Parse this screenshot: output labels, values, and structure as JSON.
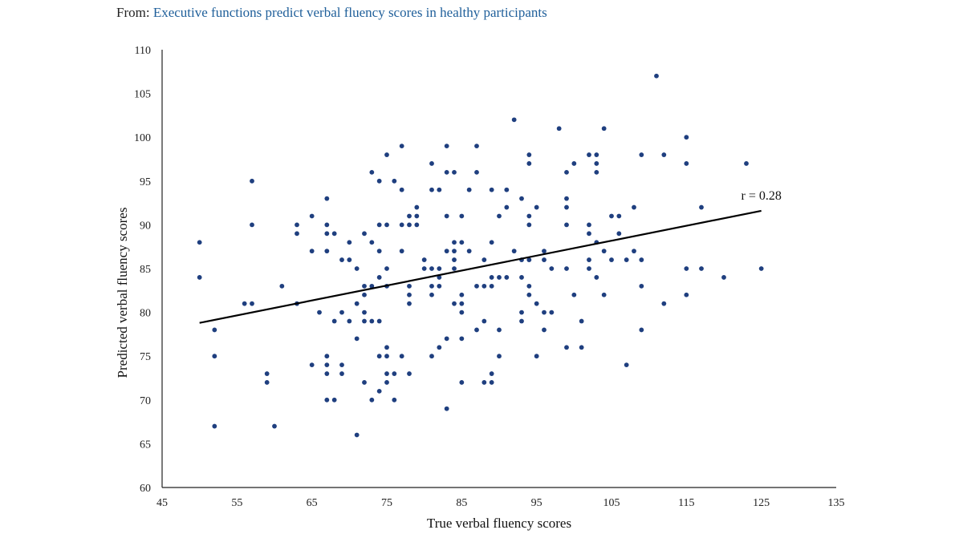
{
  "header": {
    "prefix": "From:",
    "link_text": "Executive functions predict verbal fluency scores in healthy participants"
  },
  "chart_data": {
    "type": "scatter",
    "xlabel": "True verbal fluency scores",
    "ylabel": "Predicted verbal fluency scores",
    "xlim": [
      45,
      135
    ],
    "ylim": [
      60,
      110
    ],
    "xticks": [
      45,
      55,
      65,
      75,
      85,
      95,
      105,
      115,
      125,
      135
    ],
    "yticks": [
      60,
      65,
      70,
      75,
      80,
      85,
      90,
      95,
      100,
      105,
      110
    ],
    "point_color": "#1f3f7f",
    "line_color": "#000000",
    "trendline": {
      "x": [
        50,
        125
      ],
      "y": [
        78.8,
        91.6
      ],
      "label": "r = 0.28"
    },
    "points": [
      [
        50,
        88
      ],
      [
        50,
        84
      ],
      [
        52,
        78
      ],
      [
        52,
        75
      ],
      [
        52,
        67
      ],
      [
        56,
        81
      ],
      [
        57,
        81
      ],
      [
        57,
        95
      ],
      [
        57,
        90
      ],
      [
        60,
        67
      ],
      [
        59,
        73
      ],
      [
        59,
        72
      ],
      [
        61,
        83
      ],
      [
        63,
        90
      ],
      [
        63,
        89
      ],
      [
        63,
        81
      ],
      [
        65,
        91
      ],
      [
        65,
        87
      ],
      [
        65,
        74
      ],
      [
        66,
        80
      ],
      [
        67,
        93
      ],
      [
        67,
        90
      ],
      [
        67,
        89
      ],
      [
        67,
        87
      ],
      [
        67,
        75
      ],
      [
        67,
        74
      ],
      [
        67,
        73
      ],
      [
        67,
        70
      ],
      [
        68,
        89
      ],
      [
        68,
        79
      ],
      [
        68,
        70
      ],
      [
        69,
        86
      ],
      [
        69,
        80
      ],
      [
        69,
        74
      ],
      [
        69,
        73
      ],
      [
        70,
        88
      ],
      [
        70,
        86
      ],
      [
        70,
        79
      ],
      [
        71,
        85
      ],
      [
        71,
        81
      ],
      [
        71,
        77
      ],
      [
        71,
        66
      ],
      [
        72,
        89
      ],
      [
        72,
        83
      ],
      [
        72,
        82
      ],
      [
        72,
        80
      ],
      [
        72,
        79
      ],
      [
        72,
        72
      ],
      [
        73,
        96
      ],
      [
        73,
        88
      ],
      [
        73,
        83
      ],
      [
        73,
        79
      ],
      [
        73,
        70
      ],
      [
        74,
        95
      ],
      [
        74,
        90
      ],
      [
        74,
        87
      ],
      [
        74,
        84
      ],
      [
        74,
        79
      ],
      [
        74,
        75
      ],
      [
        74,
        71
      ],
      [
        75,
        98
      ],
      [
        75,
        90
      ],
      [
        75,
        85
      ],
      [
        75,
        83
      ],
      [
        75,
        76
      ],
      [
        75,
        75
      ],
      [
        75,
        73
      ],
      [
        75,
        72
      ],
      [
        76,
        95
      ],
      [
        76,
        73
      ],
      [
        76,
        70
      ],
      [
        77,
        99
      ],
      [
        77,
        94
      ],
      [
        77,
        90
      ],
      [
        77,
        87
      ],
      [
        77,
        75
      ],
      [
        78,
        91
      ],
      [
        78,
        90
      ],
      [
        78,
        83
      ],
      [
        78,
        82
      ],
      [
        78,
        81
      ],
      [
        78,
        73
      ],
      [
        79,
        92
      ],
      [
        79,
        91
      ],
      [
        79,
        90
      ],
      [
        80,
        86
      ],
      [
        80,
        85
      ],
      [
        81,
        97
      ],
      [
        81,
        94
      ],
      [
        81,
        85
      ],
      [
        81,
        83
      ],
      [
        81,
        82
      ],
      [
        81,
        75
      ],
      [
        82,
        94
      ],
      [
        82,
        85
      ],
      [
        82,
        84
      ],
      [
        82,
        83
      ],
      [
        82,
        76
      ],
      [
        83,
        99
      ],
      [
        83,
        96
      ],
      [
        83,
        91
      ],
      [
        83,
        87
      ],
      [
        83,
        77
      ],
      [
        83,
        69
      ],
      [
        84,
        96
      ],
      [
        84,
        88
      ],
      [
        84,
        87
      ],
      [
        84,
        86
      ],
      [
        84,
        85
      ],
      [
        84,
        81
      ],
      [
        85,
        91
      ],
      [
        85,
        88
      ],
      [
        85,
        82
      ],
      [
        85,
        81
      ],
      [
        85,
        80
      ],
      [
        85,
        77
      ],
      [
        85,
        72
      ],
      [
        86,
        94
      ],
      [
        86,
        87
      ],
      [
        87,
        99
      ],
      [
        87,
        96
      ],
      [
        87,
        83
      ],
      [
        87,
        78
      ],
      [
        88,
        86
      ],
      [
        88,
        83
      ],
      [
        88,
        79
      ],
      [
        89,
        94
      ],
      [
        89,
        88
      ],
      [
        89,
        84
      ],
      [
        89,
        83
      ],
      [
        89,
        73
      ],
      [
        89,
        72
      ],
      [
        88,
        72
      ],
      [
        90,
        91
      ],
      [
        90,
        84
      ],
      [
        90,
        78
      ],
      [
        90,
        75
      ],
      [
        91,
        94
      ],
      [
        91,
        92
      ],
      [
        91,
        84
      ],
      [
        92,
        102
      ],
      [
        92,
        87
      ],
      [
        93,
        93
      ],
      [
        93,
        86
      ],
      [
        93,
        84
      ],
      [
        93,
        80
      ],
      [
        93,
        79
      ],
      [
        94,
        98
      ],
      [
        94,
        97
      ],
      [
        94,
        91
      ],
      [
        94,
        90
      ],
      [
        94,
        86
      ],
      [
        94,
        83
      ],
      [
        94,
        82
      ],
      [
        95,
        92
      ],
      [
        95,
        81
      ],
      [
        95,
        75
      ],
      [
        96,
        87
      ],
      [
        96,
        86
      ],
      [
        96,
        80
      ],
      [
        96,
        78
      ],
      [
        97,
        85
      ],
      [
        97,
        80
      ],
      [
        98,
        101
      ],
      [
        99,
        96
      ],
      [
        99,
        93
      ],
      [
        99,
        92
      ],
      [
        99,
        90
      ],
      [
        99,
        85
      ],
      [
        99,
        76
      ],
      [
        100,
        97
      ],
      [
        100,
        82
      ],
      [
        101,
        79
      ],
      [
        101,
        76
      ],
      [
        102,
        98
      ],
      [
        102,
        90
      ],
      [
        102,
        89
      ],
      [
        102,
        86
      ],
      [
        102,
        85
      ],
      [
        103,
        98
      ],
      [
        103,
        97
      ],
      [
        103,
        96
      ],
      [
        103,
        88
      ],
      [
        103,
        84
      ],
      [
        104,
        101
      ],
      [
        104,
        87
      ],
      [
        104,
        82
      ],
      [
        105,
        91
      ],
      [
        105,
        86
      ],
      [
        106,
        91
      ],
      [
        106,
        89
      ],
      [
        107,
        86
      ],
      [
        107,
        74
      ],
      [
        108,
        92
      ],
      [
        108,
        87
      ],
      [
        109,
        98
      ],
      [
        109,
        86
      ],
      [
        109,
        83
      ],
      [
        109,
        78
      ],
      [
        111,
        107
      ],
      [
        112,
        98
      ],
      [
        112,
        81
      ],
      [
        115,
        100
      ],
      [
        115,
        97
      ],
      [
        115,
        85
      ],
      [
        115,
        82
      ],
      [
        117,
        92
      ],
      [
        117,
        85
      ],
      [
        120,
        84
      ],
      [
        123,
        97
      ],
      [
        125,
        85
      ]
    ]
  }
}
